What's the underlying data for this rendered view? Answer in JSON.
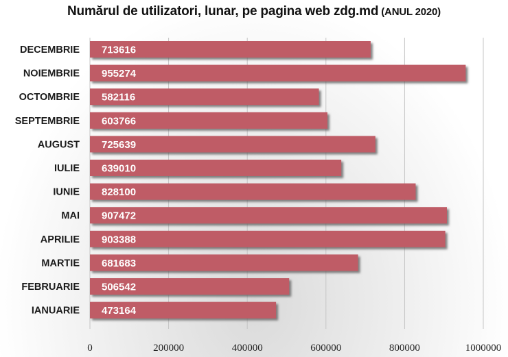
{
  "title": {
    "main": "Numărul de utilizatori, lunar, pe pagina web zdg.md",
    "sub": "(ANUL 2020)"
  },
  "colors": {
    "bar": "#bf5b66",
    "bar_shadow": "#6f6f6f",
    "grid": "#c4c4c4"
  },
  "chart_data": {
    "type": "bar",
    "orientation": "horizontal",
    "categories": [
      "DECEMBRIE",
      "NOIEMBRIE",
      "OCTOMBRIE",
      "SEPTEMBRIE",
      "AUGUST",
      "IULIE",
      "IUNIE",
      "MAI",
      "APRILIE",
      "MARTIE",
      "FEBRUARIE",
      "IANUARIE"
    ],
    "values": [
      713616,
      955274,
      582116,
      603766,
      725639,
      639010,
      828100,
      907472,
      903388,
      681683,
      506542,
      473164
    ],
    "xlim": [
      0,
      1000000
    ],
    "xticks": [
      "0",
      "200000",
      "400000",
      "600000",
      "800000",
      "1000000"
    ],
    "xtick_values": [
      0,
      200000,
      400000,
      600000,
      800000,
      1000000
    ],
    "grid": true,
    "data_labels": true
  }
}
